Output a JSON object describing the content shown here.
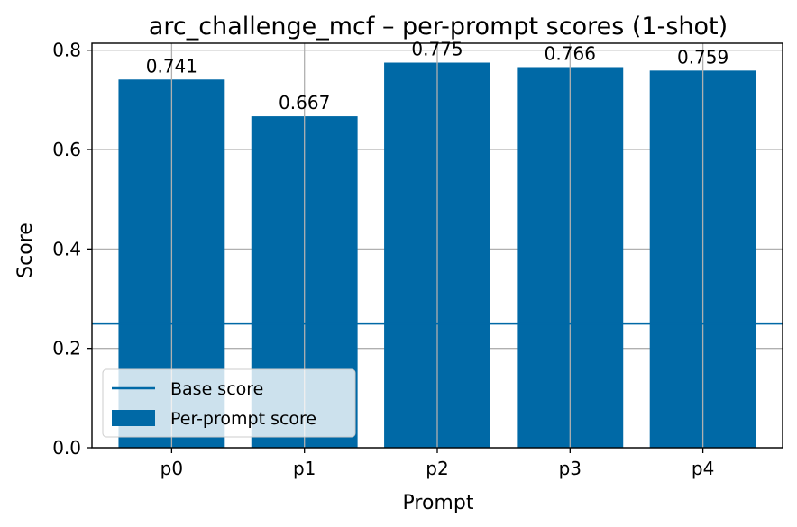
{
  "chart_data": {
    "type": "bar",
    "title": "arc_challenge_mcf – per-prompt scores (1-shot)",
    "xlabel": "Prompt",
    "ylabel": "Score",
    "categories": [
      "p0",
      "p1",
      "p2",
      "p3",
      "p4"
    ],
    "series": [
      {
        "name": "Per-prompt score",
        "values": [
          0.741,
          0.667,
          0.775,
          0.766,
          0.759
        ]
      }
    ],
    "data_labels": [
      "0.741",
      "0.667",
      "0.775",
      "0.766",
      "0.759"
    ],
    "reference_line": {
      "name": "Base score",
      "value": 0.25
    },
    "ylim": [
      0,
      0.814
    ],
    "yticks": [
      0.0,
      0.2,
      0.4,
      0.6,
      0.8
    ],
    "ytick_labels": [
      "0.0",
      "0.2",
      "0.4",
      "0.6",
      "0.8"
    ],
    "grid": true,
    "legend_position": "lower-left",
    "colors": {
      "bar": "#0069a6",
      "line": "#0069a6",
      "grid": "#b0b0b0"
    }
  }
}
